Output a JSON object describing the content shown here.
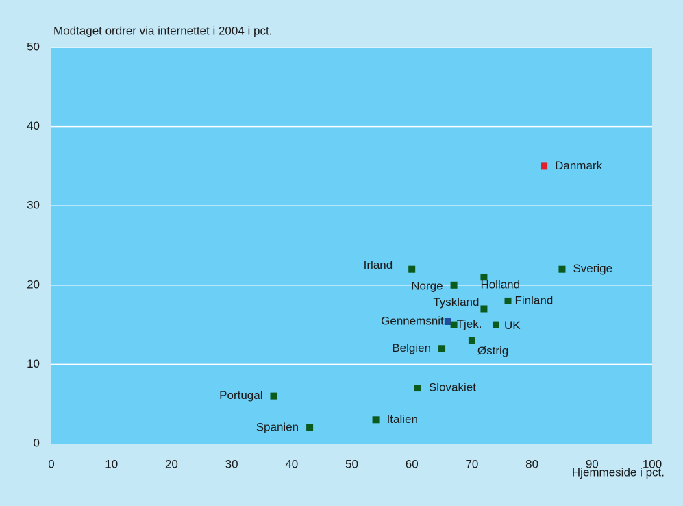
{
  "chart_data": {
    "type": "scatter",
    "y_axis_label": "Modtaget ordrer via internettet i 2004 i pct.",
    "x_axis_label": "Hjemmeside i pct.",
    "xlim": [
      0,
      100
    ],
    "xticks": [
      0,
      10,
      20,
      30,
      40,
      50,
      60,
      70,
      80,
      90,
      100
    ],
    "ylim": [
      0,
      50
    ],
    "yticks": [
      0,
      10,
      20,
      30,
      40,
      50
    ],
    "grid": true,
    "points": [
      {
        "name": "Danmark",
        "x": 82,
        "y": 35,
        "color": "#e0202a"
      },
      {
        "name": "Sverige",
        "x": 85,
        "y": 22,
        "color": "#0b5a1e"
      },
      {
        "name": "Irland",
        "x": 60,
        "y": 22,
        "color": "#0b5a1e"
      },
      {
        "name": "Holland",
        "x": 72,
        "y": 21,
        "color": "#0b5a1e"
      },
      {
        "name": "Norge",
        "x": 67,
        "y": 20,
        "color": "#0b5a1e"
      },
      {
        "name": "Finland",
        "x": 76,
        "y": 18,
        "color": "#0b5a1e"
      },
      {
        "name": "Tyskland",
        "x": 72,
        "y": 17,
        "color": "#0b5a1e"
      },
      {
        "name": "Gennemsnit",
        "x": 66,
        "y": 15.4,
        "color": "#1f4ea0"
      },
      {
        "name": "Tjek.",
        "x": 67,
        "y": 15,
        "color": "#0b5a1e"
      },
      {
        "name": "UK",
        "x": 74,
        "y": 15,
        "color": "#0b5a1e"
      },
      {
        "name": "Østrig",
        "x": 70,
        "y": 13,
        "color": "#0b5a1e"
      },
      {
        "name": "Belgien",
        "x": 65,
        "y": 12,
        "color": "#0b5a1e"
      },
      {
        "name": "Slovakiet",
        "x": 61,
        "y": 7,
        "color": "#0b5a1e"
      },
      {
        "name": "Portugal",
        "x": 37,
        "y": 6,
        "color": "#0b5a1e"
      },
      {
        "name": "Italien",
        "x": 54,
        "y": 3,
        "color": "#0b5a1e"
      },
      {
        "name": "Spanien",
        "x": 43,
        "y": 2,
        "color": "#0b5a1e"
      }
    ]
  }
}
